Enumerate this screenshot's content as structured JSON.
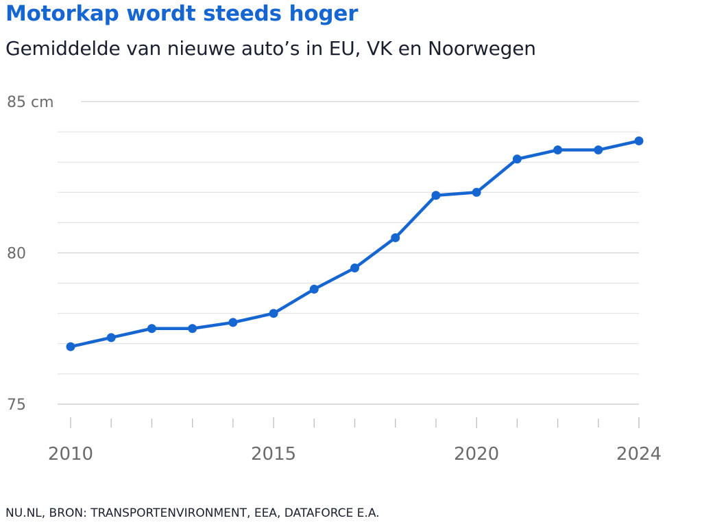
{
  "header": {
    "title": "Motorkap wordt steeds hoger",
    "subtitle": "Gemiddelde van nieuwe auto’s in EU, VK en Noorwegen"
  },
  "footer": {
    "source": "NU.NL, BRON: TRANSPORTENVIRONMENT, EEA, DATAFORCE E.A."
  },
  "colors": {
    "line": "#1666d1",
    "title": "#1666d1",
    "grid": "#dddddd",
    "tick_text": "#6b6b6b"
  },
  "chart_data": {
    "type": "line",
    "title": "Motorkap wordt steeds hoger",
    "subtitle": "Gemiddelde van nieuwe auto’s in EU, VK en Noorwegen",
    "xlabel": "",
    "ylabel": "",
    "x": [
      2010,
      2011,
      2012,
      2013,
      2014,
      2015,
      2016,
      2017,
      2018,
      2019,
      2020,
      2021,
      2022,
      2023,
      2024
    ],
    "series": [
      {
        "values": [
          76.9,
          77.2,
          77.5,
          77.5,
          77.7,
          78.0,
          78.8,
          79.5,
          80.5,
          81.9,
          82.0,
          83.1,
          83.4,
          83.4,
          83.7
        ]
      }
    ],
    "xlim": [
      2010,
      2024
    ],
    "ylim": [
      75,
      85
    ],
    "y_ticks": [
      {
        "value": 85,
        "label": "85 cm"
      },
      {
        "value": 80,
        "label": "80"
      },
      {
        "value": 75,
        "label": "75"
      }
    ],
    "x_ticks": [
      {
        "value": 2010,
        "label": "2010"
      },
      {
        "value": 2015,
        "label": "2015"
      },
      {
        "value": 2020,
        "label": "2020"
      },
      {
        "value": 2024,
        "label": "2024"
      }
    ],
    "minor_x_ticks": [
      2011,
      2012,
      2013,
      2014,
      2016,
      2017,
      2018,
      2019,
      2021,
      2022,
      2023
    ],
    "minor_y_grid": [
      76,
      77,
      78,
      79,
      81,
      82,
      83,
      84
    ],
    "grid": true,
    "markers": true,
    "legend": "none"
  }
}
